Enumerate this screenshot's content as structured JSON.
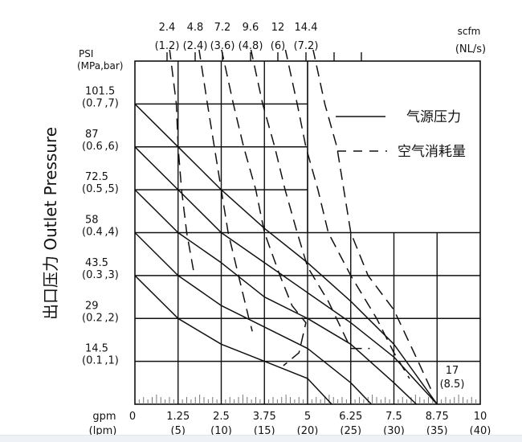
{
  "chart_data": {
    "type": "line",
    "title": "",
    "xlabel": "gpm (lpm)",
    "ylabel": "出口压力 Outlet Pressure",
    "top_axis_label": [
      "scfm",
      "(NL/s)"
    ],
    "left_axis_unit": [
      "PSI",
      "(MPa,bar)"
    ],
    "bottom_axis_unit": [
      "gpm",
      "(lpm)"
    ],
    "x_range_gpm": [
      0,
      10
    ],
    "y_range_bar": [
      0,
      8
    ],
    "grid": true,
    "x_ticks": [
      {
        "gpm": "0",
        "lpm": ""
      },
      {
        "gpm": "1.25",
        "lpm": "(5)"
      },
      {
        "gpm": "2.5",
        "lpm": "(10)"
      },
      {
        "gpm": "3.75",
        "lpm": "(15)"
      },
      {
        "gpm": "5",
        "lpm": "(20)"
      },
      {
        "gpm": "6.25",
        "lpm": "(25)"
      },
      {
        "gpm": "7.5",
        "lpm": "(30)"
      },
      {
        "gpm": "8.75",
        "lpm": "(35)"
      },
      {
        "gpm": "10",
        "lpm": "(40)"
      }
    ],
    "y_ticks": [
      {
        "psi": "101.5",
        "mpa_bar": "(0.7,7)",
        "bar": 7
      },
      {
        "psi": "87",
        "mpa_bar": "(0.6,6)",
        "bar": 6
      },
      {
        "psi": "72.5",
        "mpa_bar": "(0.5,5)",
        "bar": 5
      },
      {
        "psi": "58",
        "mpa_bar": "(0.4,4)",
        "bar": 4
      },
      {
        "psi": "43.5",
        "mpa_bar": "(0.3,3)",
        "bar": 3
      },
      {
        "psi": "29",
        "mpa_bar": "(0.2,2)",
        "bar": 2
      },
      {
        "psi": "14.5",
        "mpa_bar": "(0.1,1)",
        "bar": 1
      }
    ],
    "air_consumption_ticks": [
      {
        "scfm": "2.4",
        "nls": "(1.2)"
      },
      {
        "scfm": "4.8",
        "nls": "(2.4)"
      },
      {
        "scfm": "7.2",
        "nls": "(3.6)"
      },
      {
        "scfm": "9.6",
        "nls": "(4.8)"
      },
      {
        "scfm": "12",
        "nls": "(6)"
      },
      {
        "scfm": "14.4",
        "nls": "(7.2)"
      }
    ],
    "annotation": {
      "text1": "17",
      "text2": "(8.5)",
      "x_gpm": 8.75,
      "y_bar": 0
    },
    "legend": [
      {
        "style": "solid",
        "label": "气源压力"
      },
      {
        "style": "dashed",
        "label": "空气消耗量"
      }
    ],
    "series": [
      {
        "name": "气源压力 7 bar",
        "style": "solid",
        "points": [
          [
            0,
            7
          ],
          [
            1.25,
            6
          ],
          [
            2.5,
            5
          ],
          [
            3.75,
            4.1
          ],
          [
            5,
            3.3
          ],
          [
            6.25,
            2.4
          ],
          [
            7.5,
            1.4
          ],
          [
            8.75,
            0
          ]
        ]
      },
      {
        "name": "气源压力 6 bar",
        "style": "solid",
        "points": [
          [
            0,
            6
          ],
          [
            1.25,
            5
          ],
          [
            2.5,
            4
          ],
          [
            3.75,
            3.3
          ],
          [
            5,
            2.6
          ],
          [
            6.25,
            1.9
          ],
          [
            7.5,
            1.1
          ],
          [
            8.75,
            0
          ]
        ]
      },
      {
        "name": "气源压力 5 bar",
        "style": "solid",
        "points": [
          [
            0,
            5
          ],
          [
            1.25,
            4
          ],
          [
            2.5,
            3.3
          ],
          [
            3.75,
            2.5
          ],
          [
            5,
            2.0
          ],
          [
            6.25,
            1.4
          ],
          [
            7.5,
            0.5
          ],
          [
            8.15,
            0
          ]
        ]
      },
      {
        "name": "气源压力 4 bar",
        "style": "solid",
        "points": [
          [
            0,
            4
          ],
          [
            1.25,
            3
          ],
          [
            2.5,
            2.3
          ],
          [
            3.75,
            1.8
          ],
          [
            5,
            1.3
          ],
          [
            6.25,
            0.5
          ],
          [
            6.85,
            0
          ]
        ]
      },
      {
        "name": "气源压力 3 bar",
        "style": "solid",
        "points": [
          [
            0,
            3
          ],
          [
            1.25,
            2
          ],
          [
            2.5,
            1.4
          ],
          [
            3.75,
            1.0
          ],
          [
            5,
            0.6
          ],
          [
            5.7,
            0
          ]
        ]
      },
      {
        "name": "空气消耗量 1.2 NL/s",
        "style": "dashed",
        "points": [
          [
            1.0,
            8.3
          ],
          [
            1.2,
            7
          ],
          [
            1.25,
            6
          ],
          [
            1.35,
            5
          ],
          [
            1.5,
            4
          ],
          [
            1.7,
            3.1
          ]
        ]
      },
      {
        "name": "空气消耗量 2.4 NL/s",
        "style": "dashed",
        "points": [
          [
            1.85,
            8.3
          ],
          [
            2.1,
            7
          ],
          [
            2.3,
            6
          ],
          [
            2.5,
            5
          ],
          [
            2.7,
            4
          ],
          [
            3.0,
            3
          ],
          [
            3.3,
            2
          ],
          [
            3.4,
            1.7
          ]
        ]
      },
      {
        "name": "空气消耗量 3.6 NL/s",
        "style": "dashed",
        "points": [
          [
            2.5,
            8.3
          ],
          [
            2.85,
            7
          ],
          [
            3.15,
            6
          ],
          [
            3.5,
            5
          ],
          [
            3.75,
            4
          ],
          [
            4.2,
            3
          ],
          [
            4.55,
            2.3
          ],
          [
            4.95,
            1.9
          ],
          [
            4.75,
            1.2
          ],
          [
            4.3,
            0.9
          ]
        ]
      },
      {
        "name": "空气消耗量 4.8 NL/s",
        "style": "dashed",
        "points": [
          [
            3.35,
            8.3
          ],
          [
            3.7,
            7
          ],
          [
            4.05,
            6
          ],
          [
            4.35,
            5
          ],
          [
            4.7,
            4
          ],
          [
            5.0,
            3.2
          ],
          [
            5.6,
            2.4
          ],
          [
            6.25,
            1.3
          ],
          [
            6.8,
            1.3
          ]
        ]
      },
      {
        "name": "空气消耗量 6 NL/s",
        "style": "dashed",
        "points": [
          [
            4.35,
            8.3
          ],
          [
            4.7,
            7
          ],
          [
            4.95,
            6
          ],
          [
            5.3,
            5
          ],
          [
            5.6,
            4
          ],
          [
            6.25,
            3
          ],
          [
            7.0,
            2
          ],
          [
            7.5,
            1.2
          ],
          [
            7.95,
            0.6
          ]
        ]
      },
      {
        "name": "空气消耗量 7.2 NL/s",
        "style": "dashed",
        "points": [
          [
            5.15,
            8.3
          ],
          [
            5.5,
            7
          ],
          [
            5.85,
            6
          ],
          [
            6.25,
            4
          ],
          [
            6.75,
            3
          ],
          [
            7.5,
            2.2
          ],
          [
            8.2,
            1
          ],
          [
            8.6,
            0.3
          ]
        ]
      }
    ]
  }
}
